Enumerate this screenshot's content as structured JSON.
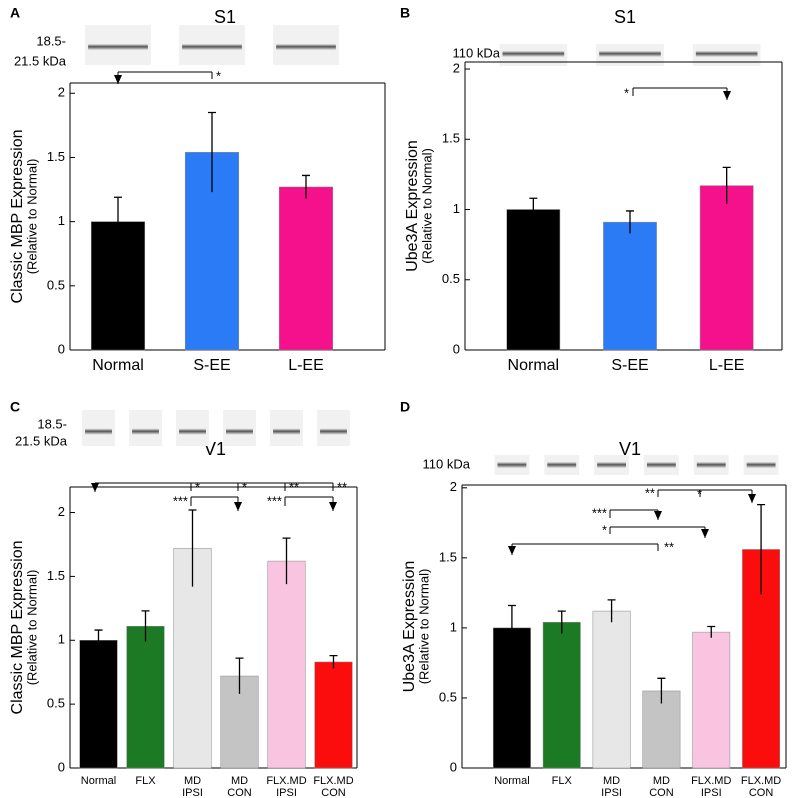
{
  "chart_data": [
    {
      "type": "bar",
      "panel": "A",
      "title": "S1",
      "blot_label": [
        "18.5-",
        "21.5 kDa"
      ],
      "y_label": "Classic MBP Expression",
      "y_sublabel": "(Relative to Normal)",
      "categories": [
        [
          "Normal"
        ],
        [
          "S-EE"
        ],
        [
          "L-EE"
        ]
      ],
      "values": [
        1.0,
        1.54,
        1.27
      ],
      "errors": [
        0.19,
        0.31,
        0.09
      ],
      "colors": [
        "#000000",
        "#2b7bf6",
        "#f5108c"
      ],
      "ylim": [
        0,
        2.08
      ],
      "yticks": [
        0,
        0.5,
        1,
        1.5,
        2
      ],
      "significance": [
        "*"
      ]
    },
    {
      "type": "bar",
      "panel": "B",
      "title": "S1",
      "blot_label": [
        "110 kDa"
      ],
      "y_label": "Ube3A Expression",
      "y_sublabel": "(Relative to Normal)",
      "categories": [
        [
          "Normal"
        ],
        [
          "S-EE"
        ],
        [
          "L-EE"
        ]
      ],
      "values": [
        1.0,
        0.91,
        1.17
      ],
      "errors": [
        0.08,
        0.08,
        0.13
      ],
      "colors": [
        "#000000",
        "#2b7bf6",
        "#f5108c"
      ],
      "ylim": [
        0,
        2.05
      ],
      "yticks": [
        0,
        0.5,
        1,
        1.5,
        2
      ],
      "significance": [
        "*"
      ]
    },
    {
      "type": "bar",
      "panel": "C",
      "title": "V1",
      "blot_label": [
        "18.5-",
        "21.5 kDa"
      ],
      "y_label": "Classic MBP Expression",
      "y_sublabel": "(Relative to Normal)",
      "categories": [
        [
          "Normal"
        ],
        [
          "FLX"
        ],
        [
          "MD",
          "IPSI"
        ],
        [
          "MD",
          "CON"
        ],
        [
          "FLX.MD",
          "IPSI"
        ],
        [
          "FLX.MD",
          "CON"
        ]
      ],
      "values": [
        1.0,
        1.11,
        1.72,
        0.72,
        1.62,
        0.83
      ],
      "errors": [
        0.08,
        0.12,
        0.3,
        0.14,
        0.18,
        0.05
      ],
      "colors": [
        "#000000",
        "#1c7a24",
        "#e6e7e6",
        "#c4c4c4",
        "#f8c4e0",
        "#fb0d0d"
      ],
      "ylim": [
        0,
        2.2
      ],
      "yticks": [
        0,
        0.5,
        1,
        1.5,
        2
      ],
      "significance": [
        "*",
        "*",
        "**",
        "**",
        "***",
        "***"
      ]
    },
    {
      "type": "bar",
      "panel": "D",
      "title": "V1",
      "blot_label": [
        "110 kDa"
      ],
      "y_label": "Ube3A Expression",
      "y_sublabel": "(Relative to Normal)",
      "categories": [
        [
          "Normal"
        ],
        [
          "FLX"
        ],
        [
          "MD",
          "IPSI"
        ],
        [
          "MD",
          "CON"
        ],
        [
          "FLX.MD",
          "IPSI"
        ],
        [
          "FLX.MD",
          "CON"
        ]
      ],
      "values": [
        1.0,
        1.04,
        1.12,
        0.55,
        0.97,
        1.56
      ],
      "errors": [
        0.16,
        0.08,
        0.08,
        0.09,
        0.04,
        0.32
      ],
      "colors": [
        "#000000",
        "#1c7a24",
        "#e6e7e6",
        "#c4c4c4",
        "#f8c4e0",
        "#fb0d0d"
      ],
      "ylim": [
        0,
        2.02
      ],
      "yticks": [
        0,
        0.5,
        1,
        1.5,
        2
      ],
      "significance": [
        "**",
        "*",
        "***",
        "*",
        "**"
      ]
    }
  ]
}
